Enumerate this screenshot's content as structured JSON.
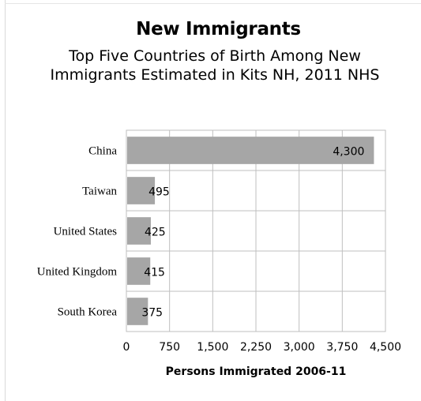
{
  "chart_data": {
    "type": "bar",
    "orientation": "horizontal",
    "title": "New Immigrants",
    "subtitle": "Top Five Countries of Birth Among New Immigrants Estimated in Kits NH, 2011 NHS",
    "categories": [
      "China",
      "Taiwan",
      "United States",
      "United Kingdom",
      "South Korea"
    ],
    "values": [
      4300,
      495,
      425,
      415,
      375
    ],
    "value_labels": [
      "4,300",
      "495",
      "425",
      "415",
      "375"
    ],
    "xlabel": "Persons Immigrated 2006-11",
    "ylabel": "",
    "xlim": [
      0,
      4500
    ],
    "xticks": [
      0,
      750,
      1500,
      2250,
      3000,
      3750,
      4500
    ],
    "xtick_labels": [
      "0",
      "750",
      "1,500",
      "2,250",
      "3,000",
      "3,750",
      "4,500"
    ],
    "grid": true,
    "legend": "none",
    "bar_color": "#a6a6a6",
    "grid_color": "#bfbfbf"
  }
}
